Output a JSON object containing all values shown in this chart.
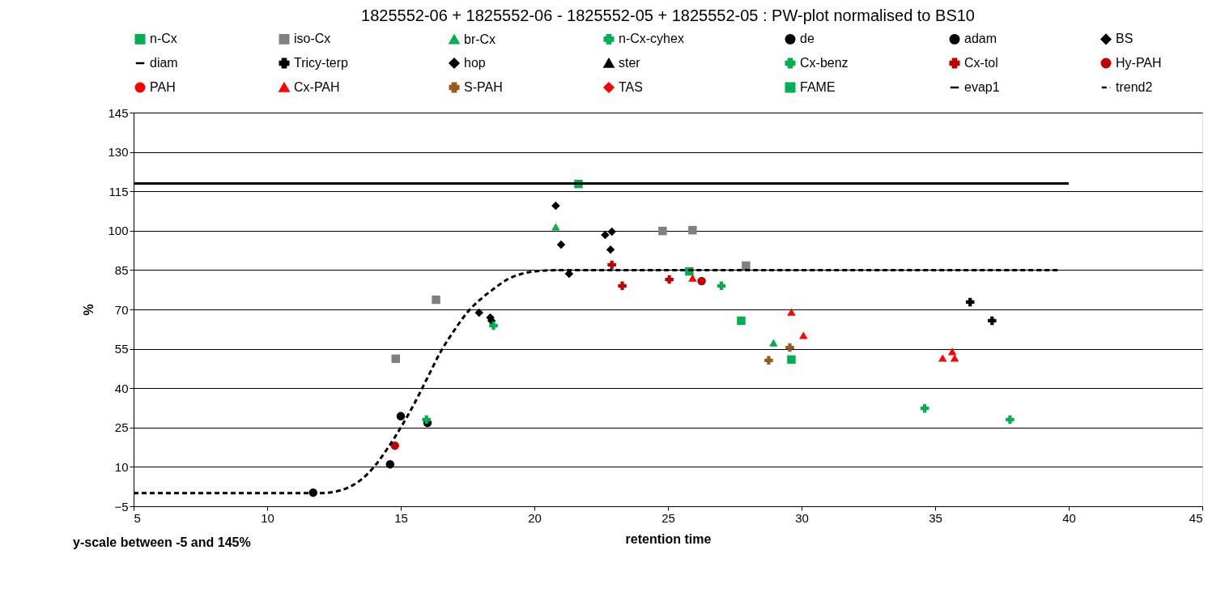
{
  "chart_data": {
    "type": "scatter",
    "title": "1825552-06 + 1825552-06  -   1825552-05 + 1825552-05 :   PW-plot normalised to BS10",
    "xlabel": "retention time",
    "ylabel": "%",
    "annotations": [
      "y-scale between -5 and 145%"
    ],
    "xlim": [
      5,
      45
    ],
    "xticks": [
      5,
      10,
      15,
      20,
      25,
      30,
      35,
      40,
      45
    ],
    "ylim": [
      -5,
      145
    ],
    "yticks": [
      -5,
      10,
      25,
      40,
      55,
      70,
      85,
      100,
      115,
      130,
      145
    ],
    "grid": "y",
    "legend": "top",
    "series": [
      {
        "name": "n-Cx",
        "color": "#00b050",
        "marker": "square",
        "x": [
          21.65,
          25.8,
          27.74,
          29.62
        ],
        "values": [
          117.8,
          84.5,
          65.7,
          50.9
        ]
      },
      {
        "name": "iso-Cx",
        "color": "#808080",
        "marker": "square",
        "x": [
          14.81,
          16.32,
          24.8,
          25.92,
          27.92
        ],
        "values": [
          51.2,
          73.7,
          99.9,
          100.2,
          86.7
        ]
      },
      {
        "name": "br-Cx",
        "color": "#00b050",
        "marker": "triangle",
        "x": [
          20.8,
          28.95
        ],
        "values": [
          101.5,
          57.3
        ]
      },
      {
        "name": "n-Cx-cyhex",
        "color": "#00b050",
        "marker": "cross",
        "x": [
          27.0
        ],
        "values": [
          79.0
        ]
      },
      {
        "name": "de",
        "color": "#000000",
        "marker": "circle"
      },
      {
        "name": "adam",
        "color": "#000000",
        "marker": "circle",
        "x": [
          11.72,
          14.6,
          15.0,
          16.0
        ],
        "values": [
          0.2,
          11.0,
          29.3,
          26.8
        ]
      },
      {
        "name": "BS",
        "color": "#000000",
        "marker": "diamond",
        "x": [
          17.93,
          18.35,
          18.4,
          20.8,
          21.0,
          21.3,
          22.65,
          22.85,
          22.9
        ],
        "values": [
          68.8,
          66.9,
          65.7,
          109.5,
          94.7,
          83.6,
          98.4,
          92.8,
          99.6
        ]
      },
      {
        "name": "diam",
        "color": "#000000",
        "marker": "none"
      },
      {
        "name": "Tricy-terp",
        "color": "#000000",
        "marker": "cross",
        "x": [
          36.31,
          37.13
        ],
        "values": [
          72.8,
          65.7
        ]
      },
      {
        "name": "hop",
        "color": "#000000",
        "marker": "diamond"
      },
      {
        "name": "ster",
        "color": "#000000",
        "marker": "triangle"
      },
      {
        "name": "Cx-benz",
        "color": "#00b050",
        "marker": "cross",
        "x": [
          15.96,
          18.47,
          34.61,
          37.8
        ],
        "values": [
          28.0,
          63.8,
          32.3,
          28.0
        ]
      },
      {
        "name": "Cx-tol",
        "color": "#c00000",
        "marker": "cross",
        "x": [
          22.9,
          23.29,
          25.05
        ],
        "values": [
          87.0,
          79.0,
          81.4
        ]
      },
      {
        "name": "Hy-PAH",
        "color": "#c00000",
        "marker": "circle",
        "x": [
          14.78,
          26.26
        ],
        "values": [
          18.1,
          80.8
        ]
      },
      {
        "name": "PAH",
        "color": "#ff0000",
        "marker": "circle"
      },
      {
        "name": "Cx-PAH",
        "color": "#ff0000",
        "marker": "triangle",
        "x": [
          25.92,
          29.62,
          30.07,
          35.28,
          35.64,
          35.73
        ],
        "values": [
          82.0,
          69.0,
          60.1,
          51.5,
          54.0,
          51.5
        ]
      },
      {
        "name": "S-PAH",
        "color": "#9c5a1a",
        "marker": "cross",
        "x": [
          28.77,
          29.56
        ],
        "values": [
          50.6,
          55.5
        ]
      },
      {
        "name": "TAS",
        "color": "#ff0000",
        "marker": "diamond"
      },
      {
        "name": "FAME",
        "color": "#00b050",
        "marker": "square"
      },
      {
        "name": "evap1",
        "type": "line",
        "color": "#000000",
        "line_style": "solid",
        "marker": "none",
        "x": [
          5,
          40
        ],
        "values": [
          118,
          118
        ]
      },
      {
        "name": "trend2",
        "type": "line",
        "color": "#000000",
        "line_style": "dashed",
        "marker": "none",
        "x": [
          5,
          12,
          12.5,
          13,
          13.5,
          14,
          14.5,
          15,
          15.5,
          16,
          16.5,
          17,
          17.5,
          18,
          18.5,
          19,
          19.5,
          20,
          21,
          39.7
        ],
        "values": [
          0,
          0,
          0.5,
          2,
          5,
          10,
          17,
          25,
          34,
          44,
          54,
          62,
          69,
          74,
          78,
          81.5,
          83.5,
          84.5,
          85,
          85
        ]
      }
    ]
  }
}
